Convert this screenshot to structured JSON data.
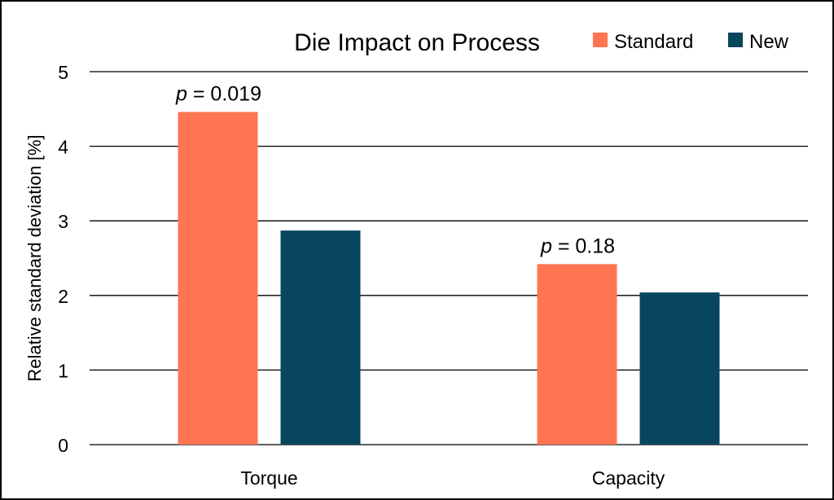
{
  "chart_data": {
    "type": "bar",
    "title": "Die Impact on Process",
    "ylabel": "Relative standard deviation [%]",
    "xlabel": "",
    "categories": [
      "Torque",
      "Capacity"
    ],
    "series": [
      {
        "name": "Standard",
        "values": [
          4.46,
          2.42
        ],
        "color": "#FF7552"
      },
      {
        "name": "New",
        "values": [
          2.87,
          2.04
        ],
        "color": "#08465E"
      }
    ],
    "ylim": [
      0,
      5
    ],
    "yticks": [
      "0",
      "1",
      "2",
      "3",
      "4",
      "5"
    ],
    "grid": true,
    "legend_position": "top-right",
    "annotations": [
      {
        "category": "Torque",
        "p_symbol": "p",
        "text": " = 0.019"
      },
      {
        "category": "Capacity",
        "p_symbol": "p",
        "text": " = 0.18"
      }
    ]
  }
}
